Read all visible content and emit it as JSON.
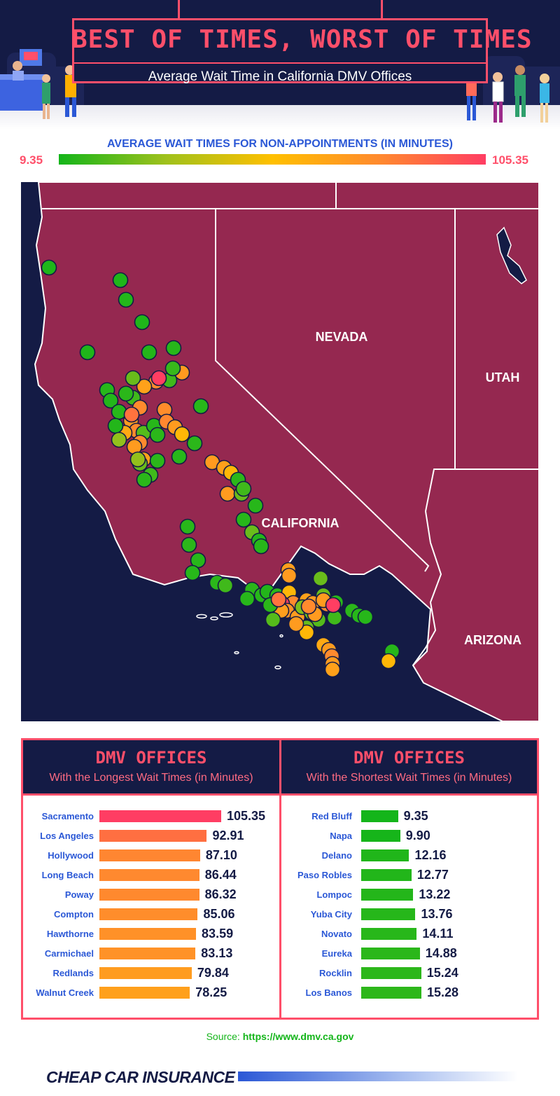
{
  "header": {
    "title": "BEST OF TIMES, WORST OF TIMES",
    "subtitle": "Average Wait Time in California DMV Offices"
  },
  "legend": {
    "title": "AVERAGE WAIT TIMES FOR NON-APPOINTMENTS (IN MINUTES)",
    "min_label": "9.35",
    "max_label": "105.35",
    "min_color": "#14b51a",
    "max_color": "#ff3d63"
  },
  "map": {
    "states": [
      "NEVADA",
      "UTAH",
      "CALIFORNIA",
      "ARIZONA"
    ],
    "colors": {
      "ocean": "#141b45",
      "land": "#952850",
      "border": "#ffffff",
      "frame": "#ff4f6a"
    }
  },
  "chart_data": [
    {
      "type": "bar",
      "orientation": "horizontal",
      "title": "DMV OFFICES",
      "subtitle": "With the Longest Wait Times (in Minutes)",
      "categories": [
        "Sacramento",
        "Los Angeles",
        "Hollywood",
        "Long Beach",
        "Poway",
        "Compton",
        "Hawthorne",
        "Carmichael",
        "Redlands",
        "Walnut Creek"
      ],
      "values": [
        105.35,
        92.91,
        87.1,
        86.44,
        86.32,
        85.06,
        83.59,
        83.13,
        79.84,
        78.25
      ],
      "labels": [
        "105.35",
        "92.91",
        "87.10",
        "86.44",
        "86.32",
        "85.06",
        "83.59",
        "83.13",
        "79.84",
        "78.25"
      ]
    },
    {
      "type": "bar",
      "orientation": "horizontal",
      "title": "DMV OFFICES",
      "subtitle": "With the Shortest Wait Times (in Minutes)",
      "categories": [
        "Red Bluff",
        "Napa",
        "Delano",
        "Paso Robles",
        "Lompoc",
        "Yuba City",
        "Novato",
        "Eureka",
        "Rocklin",
        "Los Banos"
      ],
      "values": [
        9.35,
        9.9,
        12.16,
        12.77,
        13.22,
        13.76,
        14.11,
        14.88,
        15.24,
        15.28
      ],
      "labels": [
        "9.35",
        "9.90",
        "12.16",
        "12.77",
        "13.22",
        "13.76",
        "14.11",
        "14.88",
        "15.24",
        "15.28"
      ]
    }
  ],
  "source": {
    "prefix": "Source:",
    "url": "https://www.dmv.ca.gov"
  },
  "footer": {
    "brand": "CHEAP CAR INSURANCE"
  }
}
